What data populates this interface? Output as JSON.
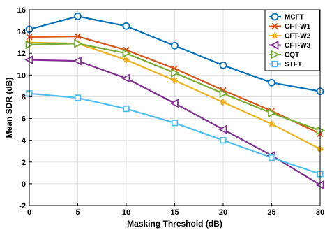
{
  "chart_data": {
    "type": "line",
    "title": "",
    "xlabel": "Masking Threshold (dB)",
    "ylabel": "Mean SDR (dB)",
    "x": [
      0,
      5,
      10,
      15,
      20,
      25,
      30
    ],
    "xlim": [
      0,
      30
    ],
    "ylim": [
      -2,
      16
    ],
    "xticks": [
      "0",
      "5",
      "10",
      "15",
      "20",
      "25",
      "30"
    ],
    "yticks": [
      "-2",
      "0",
      "2",
      "4",
      "6",
      "8",
      "10",
      "12",
      "14",
      "16"
    ],
    "grid": true,
    "legend_position": "top-right",
    "series": [
      {
        "name": "MCFT",
        "color": "#0072BD",
        "marker": "circle",
        "values": [
          14.2,
          15.4,
          14.5,
          12.7,
          10.9,
          9.3,
          8.5
        ]
      },
      {
        "name": "CFT-W1",
        "color": "#D95319",
        "marker": "x",
        "values": [
          13.5,
          13.55,
          12.3,
          10.6,
          8.6,
          6.7,
          4.6
        ]
      },
      {
        "name": "CFT-W2",
        "color": "#EDB120",
        "marker": "asterisk",
        "values": [
          13.0,
          12.9,
          11.4,
          9.5,
          7.5,
          5.5,
          3.2
        ]
      },
      {
        "name": "CFT-W3",
        "color": "#7E2F8E",
        "marker": "triangle-left",
        "values": [
          11.4,
          11.3,
          9.7,
          7.4,
          5.0,
          2.6,
          -0.1
        ]
      },
      {
        "name": "CQT",
        "color": "#77AC30",
        "marker": "triangle-right",
        "values": [
          12.8,
          12.9,
          12.0,
          10.2,
          8.3,
          6.5,
          4.9
        ]
      },
      {
        "name": "STFT",
        "color": "#4DBEEE",
        "marker": "square",
        "values": [
          8.3,
          7.9,
          6.9,
          5.6,
          4.0,
          2.4,
          0.9
        ]
      }
    ]
  }
}
